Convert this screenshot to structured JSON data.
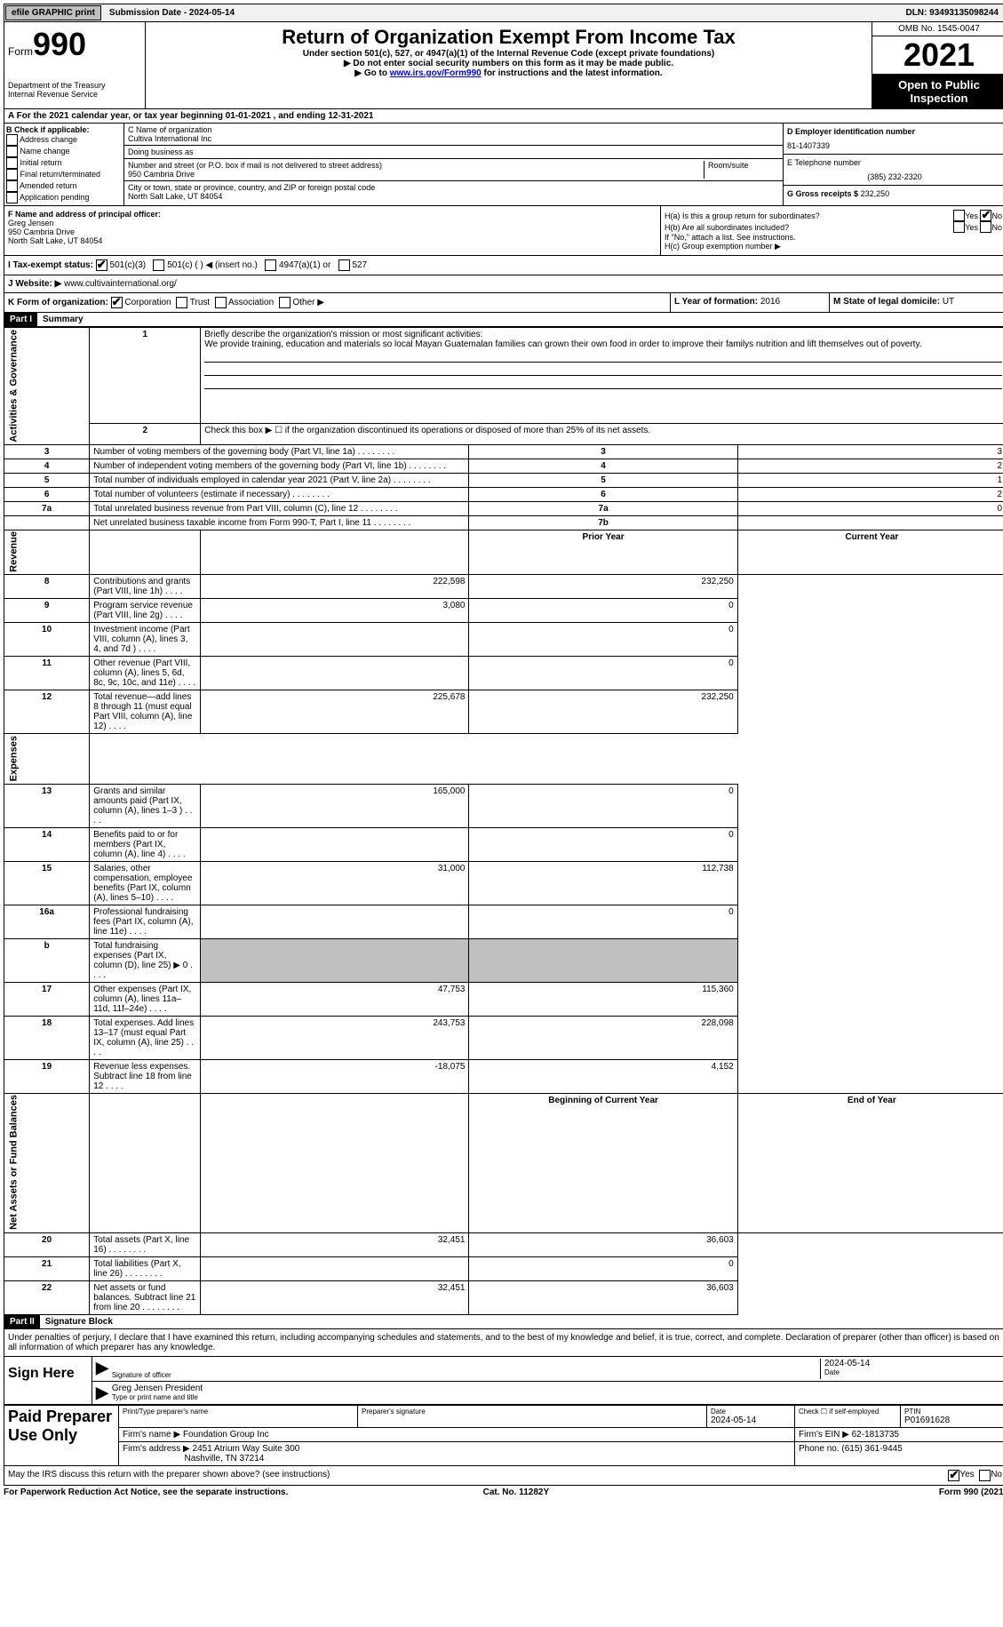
{
  "topbar": {
    "efile": "efile GRAPHIC print",
    "submission": "Submission Date - 2024-05-14",
    "dln": "DLN: 93493135098244"
  },
  "header": {
    "form_word": "Form",
    "form_num": "990",
    "title": "Return of Organization Exempt From Income Tax",
    "subtitle1": "Under section 501(c), 527, or 4947(a)(1) of the Internal Revenue Code (except private foundations)",
    "subtitle2": "▶ Do not enter social security numbers on this form as it may be made public.",
    "subtitle3_pre": "▶ Go to ",
    "subtitle3_link": "www.irs.gov/Form990",
    "subtitle3_post": " for instructions and the latest information.",
    "dept": "Department of the Treasury\nInternal Revenue Service",
    "omb": "OMB No. 1545-0047",
    "year": "2021",
    "inspection": "Open to Public Inspection"
  },
  "sectionA": "A  For the 2021 calendar year, or tax year beginning 01-01-2021    , and ending 12-31-2021",
  "B": {
    "label": "B Check if applicable:",
    "items": [
      "Address change",
      "Name change",
      "Initial return",
      "Final return/terminated",
      "Amended return",
      "Application pending"
    ]
  },
  "C": {
    "label_name": "C Name of organization",
    "org": "Cultiva International Inc",
    "dba_label": "Doing business as",
    "dba": "",
    "street_label": "Number and street (or P.O. box if mail is not delivered to street address)",
    "street": "950 Cambria Drive",
    "room_label": "Room/suite",
    "city_label": "City or town, state or province, country, and ZIP or foreign postal code",
    "city": "North Salt Lake, UT  84054"
  },
  "D": {
    "ein_label": "D Employer identification number",
    "ein": "81-1407339",
    "tel_label": "E Telephone number",
    "tel": "(385) 232-2320",
    "gross_label": "G Gross receipts $",
    "gross": "232,250"
  },
  "F": {
    "label": "F Name and address of principal officer:",
    "name": "Greg Jensen",
    "street": "950 Cambria Drive",
    "city": "North Salt Lake, UT  84054"
  },
  "H": {
    "a_label": "H(a)  Is this a group return for subordinates?",
    "b_label": "H(b)  Are all subordinates included?",
    "b_note": "If \"No,\" attach a list. See instructions.",
    "c_label": "H(c)  Group exemption number ▶",
    "yes": "Yes",
    "no": "No"
  },
  "I": {
    "label": "I   Tax-exempt status:",
    "opts": [
      "501(c)(3)",
      "501(c) (  ) ◀ (insert no.)",
      "4947(a)(1) or",
      "527"
    ]
  },
  "J": {
    "label": "J  Website: ▶",
    "val": "www.cultivainternational.org/"
  },
  "K": {
    "label": "K Form of organization:",
    "opts": [
      "Corporation",
      "Trust",
      "Association",
      "Other ▶"
    ]
  },
  "L": {
    "label": "L Year of formation:",
    "val": "2016"
  },
  "M": {
    "label": "M State of legal domicile:",
    "val": "UT"
  },
  "part1": {
    "header": "Part I",
    "title": "Summary",
    "mission_label": "Briefly describe the organization's mission or most significant activities:",
    "mission": "We provide training, education and materials so local Mayan Guatemalan families can grown their own food in order to improve their familys nutrition and lift themselves out of poverty.",
    "line2": "Check this box ▶ ☐  if the organization discontinued its operations or disposed of more than 25% of its net assets.",
    "side1": "Activities & Governance",
    "side2": "Revenue",
    "side3": "Expenses",
    "side4": "Net Assets or Fund Balances",
    "rows_gov": [
      {
        "n": "3",
        "d": "Number of voting members of the governing body (Part VI, line 1a)",
        "box": "3",
        "v": "3"
      },
      {
        "n": "4",
        "d": "Number of independent voting members of the governing body (Part VI, line 1b)",
        "box": "4",
        "v": "2"
      },
      {
        "n": "5",
        "d": "Total number of individuals employed in calendar year 2021 (Part V, line 2a)",
        "box": "5",
        "v": "1"
      },
      {
        "n": "6",
        "d": "Total number of volunteers (estimate if necessary)",
        "box": "6",
        "v": "2"
      },
      {
        "n": "7a",
        "d": "Total unrelated business revenue from Part VIII, column (C), line 12",
        "box": "7a",
        "v": "0"
      },
      {
        "n": "",
        "d": "Net unrelated business taxable income from Form 990-T, Part I, line 11",
        "box": "7b",
        "v": ""
      }
    ],
    "col_prior": "Prior Year",
    "col_curr": "Current Year",
    "rows_rev": [
      {
        "n": "8",
        "d": "Contributions and grants (Part VIII, line 1h)",
        "p": "222,598",
        "c": "232,250"
      },
      {
        "n": "9",
        "d": "Program service revenue (Part VIII, line 2g)",
        "p": "3,080",
        "c": "0"
      },
      {
        "n": "10",
        "d": "Investment income (Part VIII, column (A), lines 3, 4, and 7d )",
        "p": "",
        "c": "0"
      },
      {
        "n": "11",
        "d": "Other revenue (Part VIII, column (A), lines 5, 6d, 8c, 9c, 10c, and 11e)",
        "p": "",
        "c": "0"
      },
      {
        "n": "12",
        "d": "Total revenue—add lines 8 through 11 (must equal Part VIII, column (A), line 12)",
        "p": "225,678",
        "c": "232,250"
      }
    ],
    "rows_exp": [
      {
        "n": "13",
        "d": "Grants and similar amounts paid (Part IX, column (A), lines 1–3 )",
        "p": "165,000",
        "c": "0"
      },
      {
        "n": "14",
        "d": "Benefits paid to or for members (Part IX, column (A), line 4)",
        "p": "",
        "c": "0"
      },
      {
        "n": "15",
        "d": "Salaries, other compensation, employee benefits (Part IX, column (A), lines 5–10)",
        "p": "31,000",
        "c": "112,738"
      },
      {
        "n": "16a",
        "d": "Professional fundraising fees (Part IX, column (A), line 11e)",
        "p": "",
        "c": "0"
      },
      {
        "n": "b",
        "d": "Total fundraising expenses (Part IX, column (D), line 25) ▶ 0",
        "p": "SHADE",
        "c": "SHADE"
      },
      {
        "n": "17",
        "d": "Other expenses (Part IX, column (A), lines 11a–11d, 11f–24e)",
        "p": "47,753",
        "c": "115,360"
      },
      {
        "n": "18",
        "d": "Total expenses. Add lines 13–17 (must equal Part IX, column (A), line 25)",
        "p": "243,753",
        "c": "228,098"
      },
      {
        "n": "19",
        "d": "Revenue less expenses. Subtract line 18 from line 12",
        "p": "-18,075",
        "c": "4,152"
      }
    ],
    "col_begin": "Beginning of Current Year",
    "col_end": "End of Year",
    "rows_net": [
      {
        "n": "20",
        "d": "Total assets (Part X, line 16)",
        "p": "32,451",
        "c": "36,603"
      },
      {
        "n": "21",
        "d": "Total liabilities (Part X, line 26)",
        "p": "",
        "c": "0"
      },
      {
        "n": "22",
        "d": "Net assets or fund balances. Subtract line 21 from line 20",
        "p": "32,451",
        "c": "36,603"
      }
    ]
  },
  "part2": {
    "header": "Part II",
    "title": "Signature Block",
    "decl": "Under penalties of perjury, I declare that I have examined this return, including accompanying schedules and statements, and to the best of my knowledge and belief, it is true, correct, and complete. Declaration of preparer (other than officer) is based on all information of which preparer has any knowledge.",
    "sign_here": "Sign Here",
    "sig_officer": "Signature of officer",
    "sig_date": "2024-05-14",
    "date_label": "Date",
    "sig_name": "Greg Jensen  President",
    "sig_name_label": "Type or print name and title",
    "paid": "Paid Preparer Use Only",
    "prep_name_label": "Print/Type preparer's name",
    "prep_sig_label": "Preparer's signature",
    "prep_date_label": "Date",
    "prep_date": "2024-05-14",
    "check_self": "Check ☐ if self-employed",
    "ptin_label": "PTIN",
    "ptin": "P01691628",
    "firm_name_label": "Firm's name    ▶",
    "firm_name": "Foundation Group Inc",
    "firm_ein_label": "Firm's EIN ▶",
    "firm_ein": "62-1813735",
    "firm_addr_label": "Firm's address ▶",
    "firm_addr1": "2451 Atrium Way Suite 300",
    "firm_addr2": "Nashville, TN  37214",
    "phone_label": "Phone no.",
    "phone": "(615) 361-9445",
    "discuss": "May the IRS discuss this return with the preparer shown above? (see instructions)"
  },
  "footer": {
    "left": "For Paperwork Reduction Act Notice, see the separate instructions.",
    "mid": "Cat. No. 11282Y",
    "right": "Form 990 (2021)"
  }
}
